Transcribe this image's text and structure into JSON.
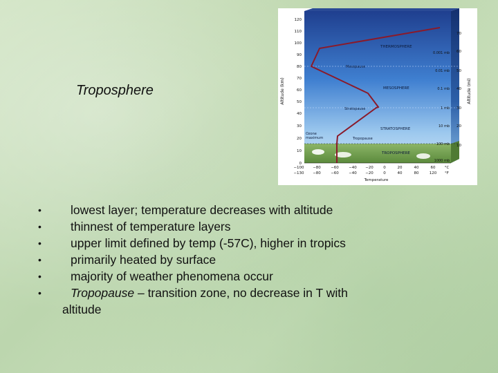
{
  "slide": {
    "title": "Troposphere"
  },
  "bullets": [
    {
      "text": "lowest layer; temperature decreases with altitude"
    },
    {
      "text": "thinnest of temperature layers"
    },
    {
      "text": "upper limit defined by temp (-57C), higher in tropics"
    },
    {
      "text": "primarily heated by surface"
    },
    {
      "text": "majority of weather phenomena occur"
    },
    {
      "emphasis": "Tropopause",
      "text": " – transition zone, no decrease in T with",
      "continuation": "altitude"
    }
  ],
  "bullet_glyph": "•",
  "diagram": {
    "left_axis_label": "Altitude (km)",
    "right_axis_label": "Altitude (mi)",
    "bottom_axis_label": "Temperature",
    "celsius_unit": "°C",
    "fahrenheit_unit": "°F",
    "altitude_km_ticks": [
      "0",
      "10",
      "20",
      "30",
      "40",
      "50",
      "60",
      "70",
      "80",
      "90",
      "100",
      "110",
      "120"
    ],
    "altitude_mi_ticks": [
      "10",
      "20",
      "30",
      "40",
      "50",
      "60",
      "70"
    ],
    "celsius_ticks": [
      "−100",
      "−80",
      "−60",
      "−40",
      "−20",
      "0",
      "20",
      "40",
      "60"
    ],
    "fahrenheit_ticks": [
      "−130",
      "−80",
      "−60",
      "−40",
      "−20",
      "0",
      "40",
      "80",
      "120"
    ],
    "pressure_labels": [
      "0.001 mb",
      "0.01 mb",
      "0.1 mb",
      "1 mb",
      "10 mb",
      "100 mb",
      "1000 mb"
    ],
    "layer_labels": [
      "THERMOSPHERE",
      "MESOSPHERE",
      "STRATOSPHERE",
      "TROPOSPHERE"
    ],
    "boundary_labels": [
      "Mesopause",
      "Stratopause",
      "Tropopause"
    ],
    "ozone_label_line1": "Ozone",
    "ozone_label_line2": "maximum",
    "colors": {
      "sky_top": "#1f3f8f",
      "sky_mid": "#3f7fd0",
      "sky_low": "#9cc8ee",
      "ground": "#6e9a4c",
      "profile_line": "#8a1a2a"
    }
  }
}
